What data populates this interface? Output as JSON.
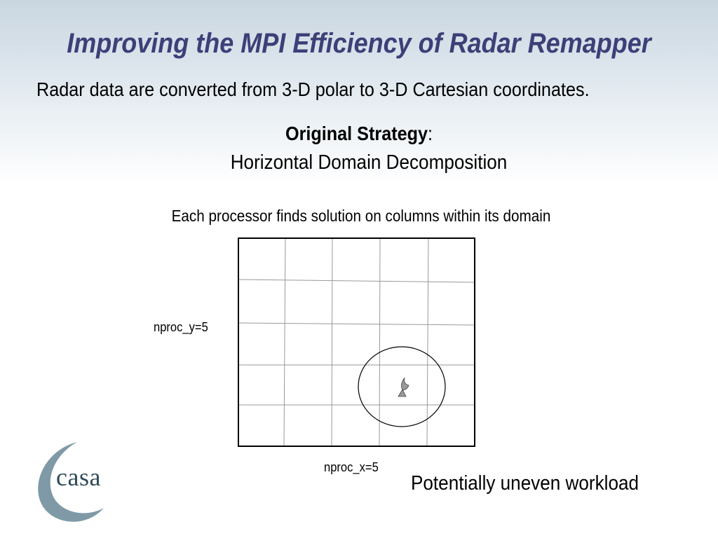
{
  "slide": {
    "title": "Improving the MPI Efficiency of Radar Remapper",
    "subtitle": "Radar data are converted from 3-D polar to 3-D Cartesian coordinates.",
    "strategy_label": "Original Strategy",
    "strategy_colon": ":",
    "strategy_name": "Horizontal Domain Decomposition",
    "description": "Each processor finds solution on columns within its domain",
    "nproc_y_label": "nproc_y=5",
    "nproc_x_label": "nproc_x=5",
    "workload_note": "Potentially uneven workload"
  },
  "logo": {
    "text": "casa",
    "color": "#7f9aa6"
  },
  "diagram": {
    "grid_columns": 5,
    "grid_rows": 5,
    "grid_line_color": "#999999",
    "border_color": "#000000",
    "radar_icon": "radar-antenna-icon",
    "radar_color": "#9a9a9a"
  },
  "colors": {
    "title": "#3d3f78"
  }
}
